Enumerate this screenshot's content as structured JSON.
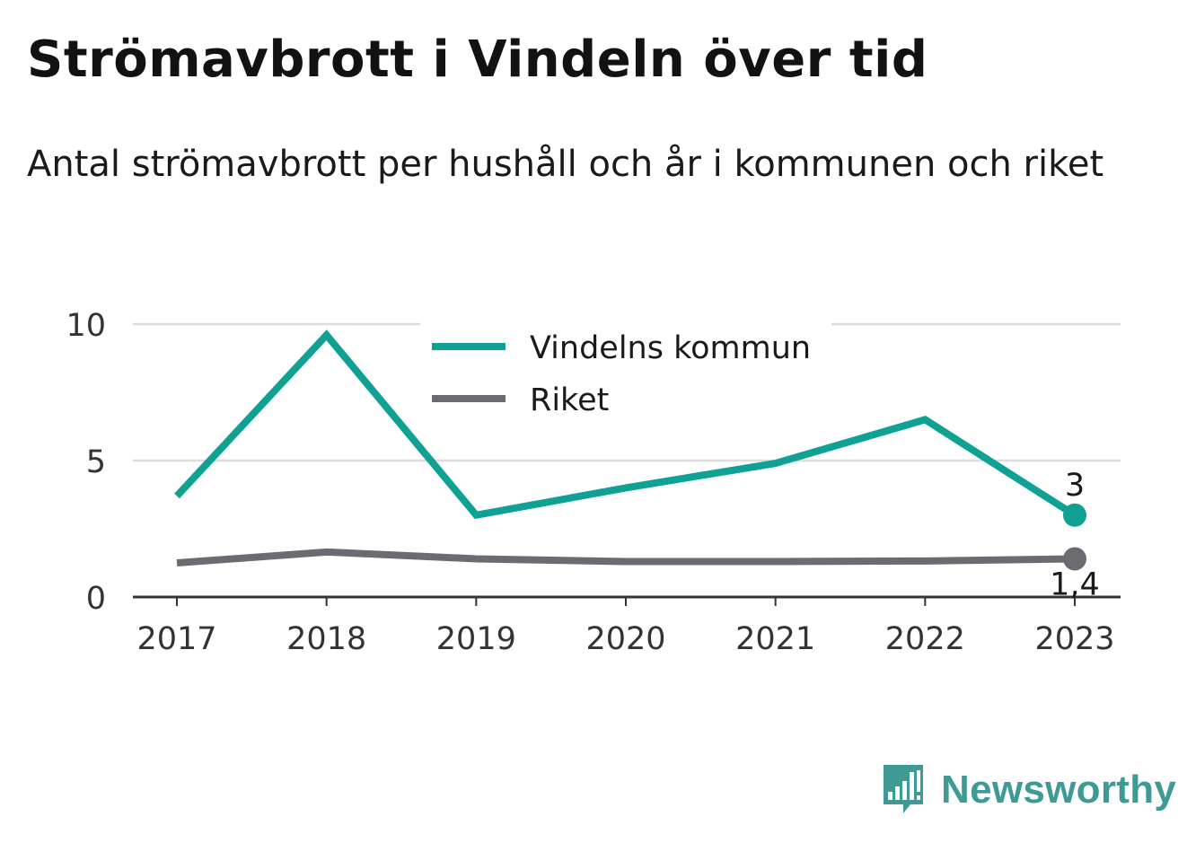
{
  "header": {
    "title": "Strömavbrott i Vindeln över tid",
    "subtitle": "Antal strömavbrott per hushåll och år i kommunen och riket"
  },
  "chart_data": {
    "type": "line",
    "x": [
      "2017",
      "2018",
      "2019",
      "2020",
      "2021",
      "2022",
      "2023"
    ],
    "ylim": [
      0,
      10
    ],
    "yticks": [
      0,
      5,
      10
    ],
    "grid": true,
    "legend_position": "top-center",
    "series": [
      {
        "name": "Vindelns kommun",
        "color": "#0fa294",
        "values": [
          3.7,
          9.6,
          3.0,
          4.0,
          4.9,
          6.5,
          3.0
        ],
        "end_label": "3"
      },
      {
        "name": "Riket",
        "color": "#6c6b72",
        "values": [
          1.25,
          1.65,
          1.4,
          1.3,
          1.3,
          1.32,
          1.4
        ],
        "end_label": "1,4"
      }
    ]
  },
  "branding": {
    "logo_text": "Newsworthy",
    "logo_icon": "newsworthy-bar-chart-icon",
    "logo_color": "#3e9a94"
  }
}
